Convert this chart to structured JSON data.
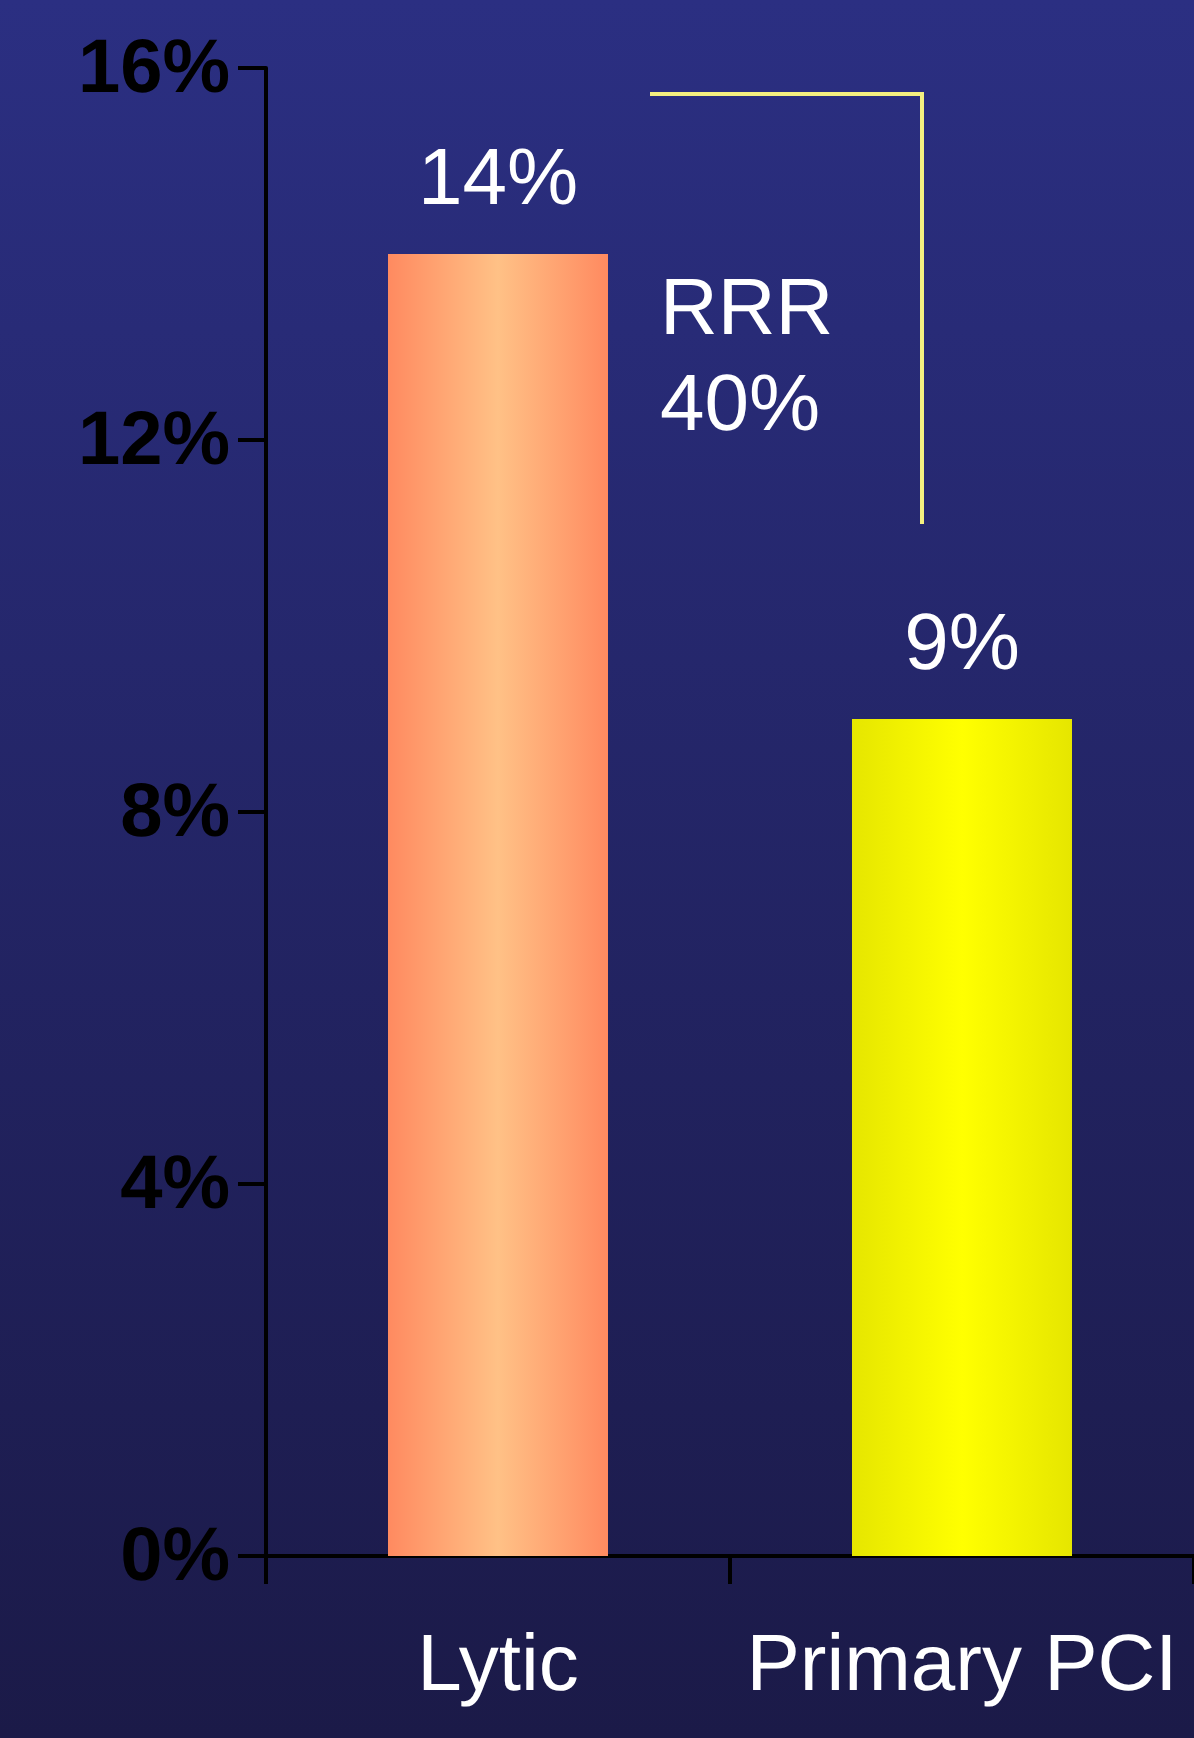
{
  "chart_data": {
    "type": "bar",
    "categories": [
      "Lytic",
      "Primary PCI"
    ],
    "values": [
      14,
      9
    ],
    "colors": [
      "#ff8a60",
      "#e6e600"
    ],
    "value_labels": [
      "14%",
      "9%"
    ],
    "ylim": [
      0,
      16
    ],
    "yticks": [
      {
        "value": 0,
        "label": "0%"
      },
      {
        "value": 4,
        "label": "4%"
      },
      {
        "value": 8,
        "label": "8%"
      },
      {
        "value": 12,
        "label": "12%"
      },
      {
        "value": 16,
        "label": "16%"
      }
    ],
    "annotations": [
      "RRR\n40%"
    ],
    "grid": false
  }
}
